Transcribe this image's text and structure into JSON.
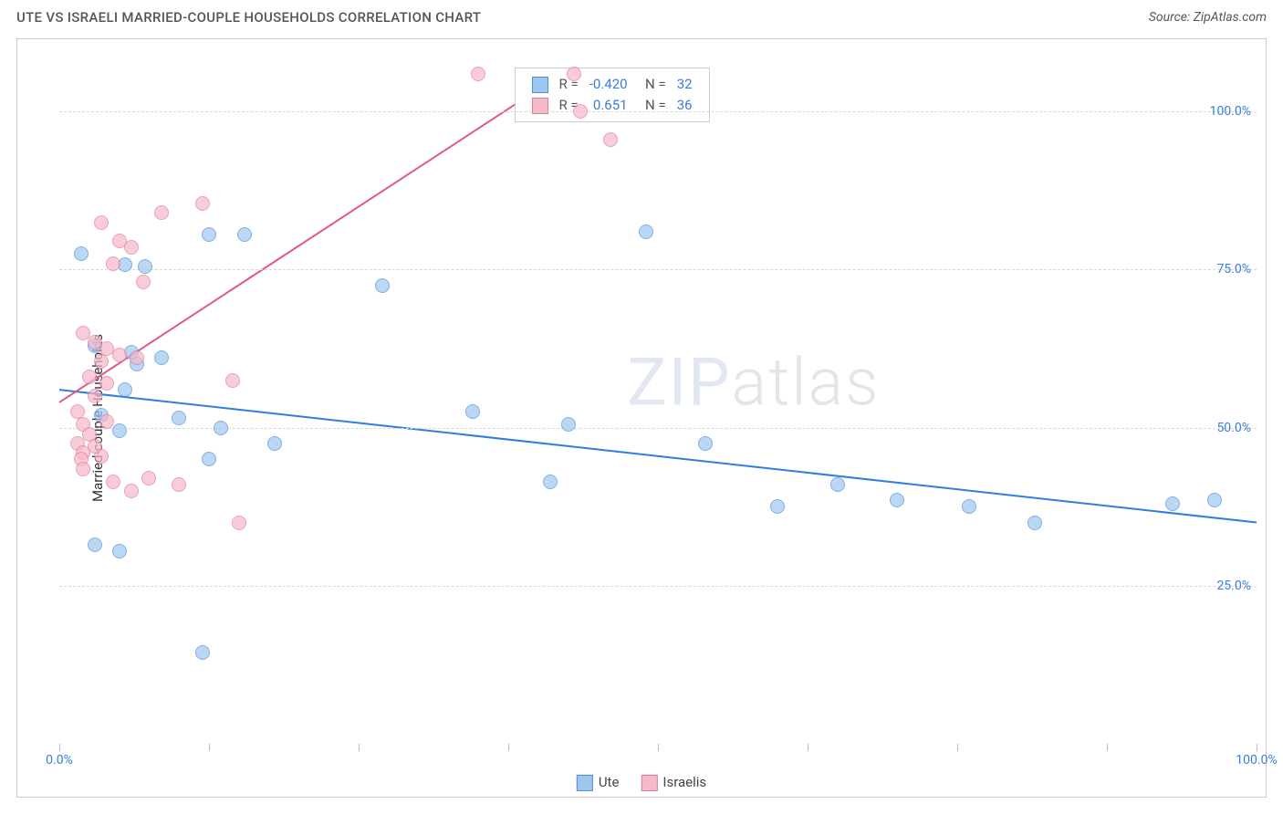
{
  "header": {
    "title": "UTE VS ISRAELI MARRIED-COUPLE HOUSEHOLDS CORRELATION CHART",
    "source_label": "Source:",
    "source_value": "ZipAtlas.com"
  },
  "chart": {
    "type": "scatter",
    "ylabel": "Married-couple Households",
    "xlim": [
      0,
      100
    ],
    "ylim": [
      0,
      110
    ],
    "y_ticks": [
      25,
      50,
      75,
      100
    ],
    "y_tick_labels": [
      "25.0%",
      "50.0%",
      "75.0%",
      "100.0%"
    ],
    "x_ticks": [
      0,
      12.5,
      25,
      37.5,
      50,
      62.5,
      75,
      87.5,
      100
    ],
    "x_tick_labels_show": {
      "0": "0.0%",
      "100": "100.0%"
    },
    "background_color": "#ffffff",
    "grid_color": "#d8d8d8",
    "axis_color": "#cccccc",
    "point_radius": 8,
    "point_border_width": 1.2,
    "point_fill_opacity": 0.35,
    "series": [
      {
        "name": "Ute",
        "color_fill": "#9ec7f0",
        "color_stroke": "#4f8fd6",
        "trend": {
          "x1": 0,
          "y1": 56,
          "x2": 100,
          "y2": 35,
          "color": "#2f7de0",
          "width": 2
        },
        "stats": {
          "R": "-0.420",
          "N": "32"
        },
        "points": [
          [
            1.8,
            77.5
          ],
          [
            5.5,
            75.8
          ],
          [
            7.2,
            75.5
          ],
          [
            12.5,
            80.5
          ],
          [
            15.5,
            80.5
          ],
          [
            27.0,
            72.5
          ],
          [
            3.0,
            63.0
          ],
          [
            6.0,
            62.0
          ],
          [
            8.5,
            61.0
          ],
          [
            6.5,
            60.0
          ],
          [
            5.5,
            56.0
          ],
          [
            3.5,
            52.0
          ],
          [
            5.0,
            49.5
          ],
          [
            10.0,
            51.5
          ],
          [
            13.5,
            50.0
          ],
          [
            18.0,
            47.5
          ],
          [
            12.5,
            45.0
          ],
          [
            34.5,
            52.5
          ],
          [
            42.5,
            50.5
          ],
          [
            41.0,
            41.5
          ],
          [
            54.0,
            47.5
          ],
          [
            60.0,
            37.5
          ],
          [
            70.0,
            38.5
          ],
          [
            76.0,
            37.5
          ],
          [
            81.5,
            35.0
          ],
          [
            93.0,
            38.0
          ],
          [
            96.5,
            38.5
          ],
          [
            3.0,
            31.5
          ],
          [
            5.0,
            30.5
          ],
          [
            12.0,
            14.5
          ],
          [
            49.0,
            81.0
          ],
          [
            65.0,
            41.0
          ]
        ]
      },
      {
        "name": "Israelis",
        "color_fill": "#f6b9c8",
        "color_stroke": "#e27a98",
        "trend": {
          "x1": 0,
          "y1": 54,
          "x2": 42,
          "y2": 106,
          "color": "#e05a86",
          "width": 2
        },
        "stats": {
          "R": "0.651",
          "N": "36"
        },
        "points": [
          [
            35.0,
            106.0
          ],
          [
            43.0,
            106.0
          ],
          [
            43.5,
            100.0
          ],
          [
            46.0,
            95.5
          ],
          [
            3.5,
            82.5
          ],
          [
            8.5,
            84.0
          ],
          [
            12.0,
            85.5
          ],
          [
            5.0,
            79.5
          ],
          [
            6.0,
            78.5
          ],
          [
            4.5,
            76.0
          ],
          [
            7.0,
            73.0
          ],
          [
            2.0,
            65.0
          ],
          [
            3.0,
            63.5
          ],
          [
            4.0,
            62.5
          ],
          [
            3.5,
            60.5
          ],
          [
            5.0,
            61.5
          ],
          [
            6.5,
            61.0
          ],
          [
            2.5,
            58.0
          ],
          [
            4.0,
            57.0
          ],
          [
            3.0,
            55.0
          ],
          [
            1.5,
            52.5
          ],
          [
            2.0,
            50.5
          ],
          [
            2.5,
            49.0
          ],
          [
            1.5,
            47.5
          ],
          [
            2.0,
            46.0
          ],
          [
            1.8,
            45.0
          ],
          [
            3.5,
            45.5
          ],
          [
            14.5,
            57.5
          ],
          [
            7.5,
            42.0
          ],
          [
            10.0,
            41.0
          ],
          [
            6.0,
            40.0
          ],
          [
            4.5,
            41.5
          ],
          [
            15.0,
            35.0
          ],
          [
            2.0,
            43.5
          ],
          [
            3.0,
            47.0
          ],
          [
            4.0,
            51.0
          ]
        ]
      }
    ],
    "legend_top": {
      "columns": [
        "swatch",
        "R",
        "N"
      ]
    },
    "legend_bottom": [
      "Ute",
      "Israelis"
    ],
    "watermark": {
      "a": "ZIP",
      "b": "atlas"
    }
  }
}
